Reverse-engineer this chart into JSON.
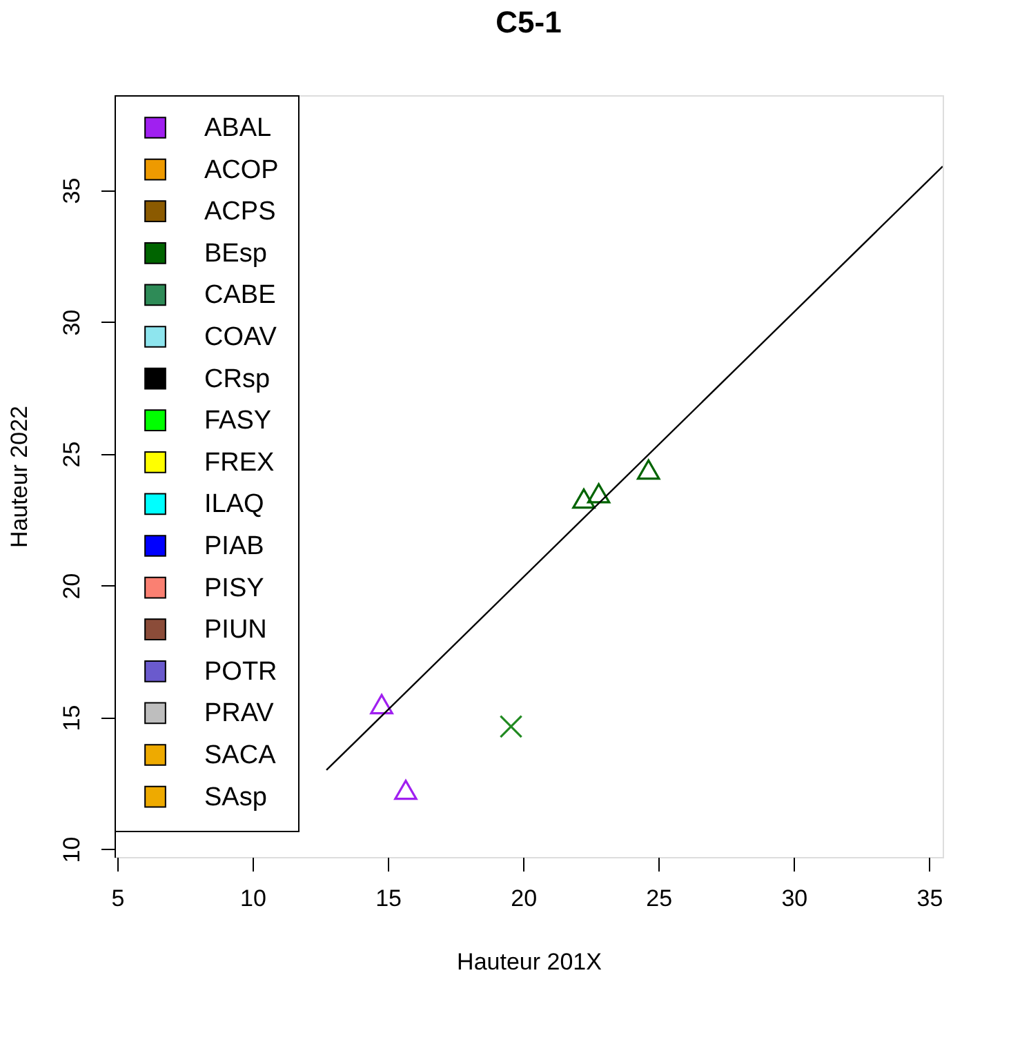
{
  "chart_data": {
    "type": "scatter",
    "title": "C5-1",
    "xlabel": "Hauteur 201X",
    "ylabel": "Hauteur 2022",
    "xlim": [
      4.9,
      35.5
    ],
    "ylim": [
      9.7,
      38.6
    ],
    "xticks": [
      5,
      10,
      15,
      20,
      25,
      30,
      35
    ],
    "yticks": [
      10,
      15,
      20,
      25,
      30,
      35
    ],
    "grid": false,
    "legend": "top left",
    "series": [
      {
        "name": "ABAL",
        "color": "#a020f0",
        "marker": "triangle",
        "x": [
          14.77,
          15.66
        ],
        "values": [
          15.5,
          12.25
        ]
      },
      {
        "name": "ACOP",
        "color": "#ee9a00"
      },
      {
        "name": "ACPS",
        "color": "#8b5a00"
      },
      {
        "name": "BEsp",
        "color": "#006400",
        "marker": "triangle",
        "x": [
          22.24,
          22.79,
          24.63
        ],
        "values": [
          23.3,
          23.5,
          24.4
        ]
      },
      {
        "name": "CABE",
        "color": "#2e8b57"
      },
      {
        "name": "COAV",
        "color": "#8ee5ee"
      },
      {
        "name": "CRsp",
        "color": "#000000"
      },
      {
        "name": "FASY",
        "color": "#00ff00"
      },
      {
        "name": "FREX",
        "color": "#ffff00"
      },
      {
        "name": "ILAQ",
        "color": "#00ffff"
      },
      {
        "name": "PIAB",
        "color": "#0000ff"
      },
      {
        "name": "PISY",
        "color": "#fa8072"
      },
      {
        "name": "PIUN",
        "color": "#8b4c39"
      },
      {
        "name": "POTR",
        "color": "#6a5acd"
      },
      {
        "name": "PRAV",
        "color": "#bebebe"
      },
      {
        "name": "SACA",
        "color": "#eeaa00"
      },
      {
        "name": "SAsp",
        "color": "#eeaa00"
      },
      {
        "color": "#228b22",
        "marker": "cross",
        "x": [
          19.55
        ],
        "values": [
          14.65
        ]
      },
      {
        "type": "line",
        "color": "#000000",
        "line_style": "solid",
        "x": [
          12.73,
          35.5
        ],
        "values": [
          13.0,
          35.9
        ]
      }
    ]
  }
}
